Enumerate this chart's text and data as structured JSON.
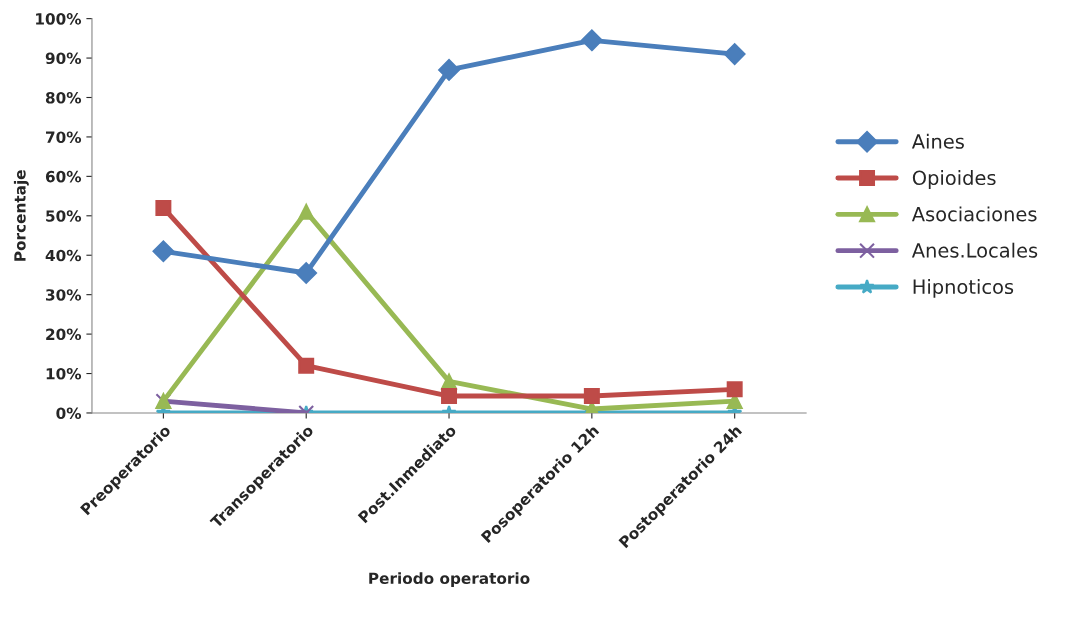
{
  "chart_data": {
    "type": "line",
    "xlabel": "Periodo operatorio",
    "ylabel": "Porcentaje",
    "categories": [
      "Preoperatorio",
      "Transoperatorio",
      "Post.Inmediato",
      "Posoperatorio 12h",
      "Postoperatorio 24h"
    ],
    "series": [
      {
        "name": "Aines",
        "color": "#4a7ebb",
        "marker": "diamond",
        "values": [
          41,
          35.5,
          87,
          94.5,
          91
        ]
      },
      {
        "name": "Opioides",
        "color": "#be4b48",
        "marker": "square",
        "values": [
          52,
          12,
          4.3,
          4.3,
          6
        ]
      },
      {
        "name": "Asociaciones",
        "color": "#98b954",
        "marker": "triangle",
        "values": [
          3,
          51,
          8,
          1,
          3
        ]
      },
      {
        "name": "Anes.Locales",
        "color": "#7d60a0",
        "marker": "cross",
        "values": [
          3,
          0,
          null,
          null,
          null
        ]
      },
      {
        "name": "Hipnoticos",
        "color": "#46aac5",
        "marker": "star",
        "values": [
          0,
          0,
          0,
          0,
          0
        ]
      }
    ],
    "ylim": [
      0,
      100
    ],
    "yticks": [
      {
        "value": 0,
        "label": "0%"
      },
      {
        "value": 10,
        "label": "10%"
      },
      {
        "value": 20,
        "label": "20%"
      },
      {
        "value": 30,
        "label": "30%"
      },
      {
        "value": 40,
        "label": "40%"
      },
      {
        "value": 50,
        "label": "50%"
      },
      {
        "value": 60,
        "label": "60%"
      },
      {
        "value": 70,
        "label": "70%"
      },
      {
        "value": 80,
        "label": "80%"
      },
      {
        "value": 90,
        "label": "90%"
      },
      {
        "value": 100,
        "label": "100%"
      }
    ],
    "grid": false,
    "legend": "right",
    "line_style": "solid"
  }
}
